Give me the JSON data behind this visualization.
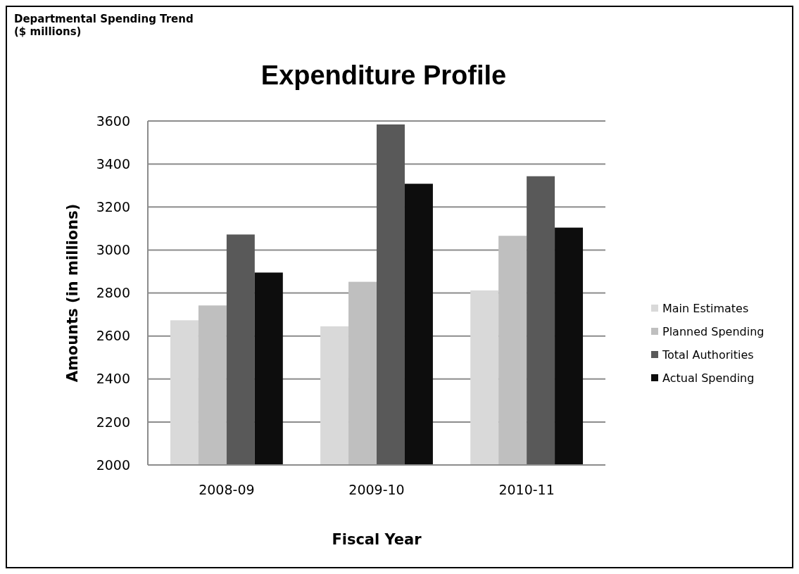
{
  "chart_data": {
    "type": "bar",
    "title": "Departmental Spending Trend ($ millions)",
    "subtitle": "Expenditure Profile",
    "xlabel": "Fiscal Year",
    "ylabel": "Amounts (in millions)",
    "categories": [
      "2008-09",
      "2009-10",
      "2010-11"
    ],
    "series": [
      {
        "name": "Main Estimates",
        "color": "#d9d9d9",
        "values": [
          2673,
          2645,
          2812
        ]
      },
      {
        "name": "Planned Spending",
        "color": "#bfbfbf",
        "values": [
          2742,
          2852,
          3066
        ]
      },
      {
        "name": "Total Authorities",
        "color": "#595959",
        "values": [
          3072,
          3584,
          3343
        ]
      },
      {
        "name": "Actual Spending",
        "color": "#0d0d0d",
        "values": [
          2895,
          3308,
          3104
        ]
      }
    ],
    "ylim": [
      2000,
      3600
    ],
    "yticks": [
      2000,
      2200,
      2400,
      2600,
      2800,
      3000,
      3200,
      3400,
      3600
    ],
    "grid": "y",
    "legend": "right"
  }
}
